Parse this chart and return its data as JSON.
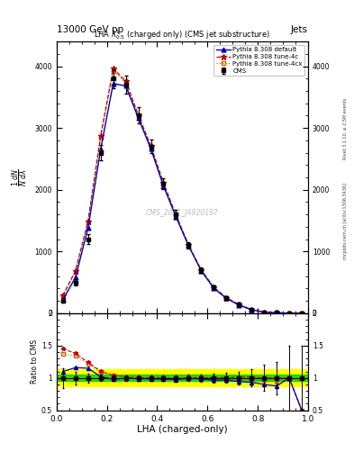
{
  "title": "13000 GeV pp",
  "title_right": "Jets",
  "plot_title": "LHA $\\lambda^1_{0.5}$ (charged only) (CMS jet substructure)",
  "xlabel": "LHA (charged-only)",
  "ylabel_top": "mathrm d $^2$N",
  "ylabel_ratio": "Ratio to CMS",
  "watermark": "CMS_2021_JA920187",
  "rivet_text": "Rivet 3.1.10, ≥ 2.5M events",
  "arxiv_text": "mcplots.cern.ch [arXiv:1306.3436]",
  "x_data": [
    0.025,
    0.075,
    0.125,
    0.175,
    0.225,
    0.275,
    0.325,
    0.375,
    0.425,
    0.475,
    0.525,
    0.575,
    0.625,
    0.675,
    0.725,
    0.775,
    0.825,
    0.875,
    0.925,
    0.975
  ],
  "cms_data": [
    200,
    500,
    1200,
    2600,
    3800,
    3700,
    3200,
    2700,
    2100,
    1600,
    1100,
    700,
    420,
    250,
    140,
    60,
    20,
    8,
    2,
    1
  ],
  "cms_errors": [
    30,
    50,
    80,
    120,
    150,
    150,
    130,
    110,
    90,
    70,
    55,
    40,
    28,
    20,
    14,
    8,
    4,
    2,
    1,
    0.5
  ],
  "pythia_default": [
    220,
    580,
    1380,
    2650,
    3720,
    3680,
    3160,
    2660,
    2060,
    1560,
    1090,
    690,
    405,
    242,
    132,
    56,
    18,
    7,
    2,
    0.5
  ],
  "pythia_4c": [
    290,
    690,
    1490,
    2870,
    3960,
    3760,
    3210,
    2710,
    2110,
    1590,
    1105,
    703,
    422,
    252,
    142,
    61,
    20,
    8,
    2,
    0.5
  ],
  "pythia_4cx": [
    275,
    670,
    1470,
    2840,
    3920,
    3740,
    3190,
    2695,
    2095,
    1575,
    1098,
    698,
    418,
    250,
    140,
    59,
    19.5,
    7.5,
    2,
    0.5
  ],
  "ylim_main": [
    0,
    4400
  ],
  "ylim_ratio": [
    0.5,
    2.0
  ],
  "xlim": [
    0,
    1
  ],
  "yticks_main": [
    0,
    1000,
    2000,
    3000,
    4000
  ],
  "yticks_ratio": [
    0.5,
    1.0,
    1.5,
    2.0
  ],
  "green_band": [
    0.95,
    1.05
  ],
  "yellow_band": [
    0.87,
    1.13
  ],
  "cms_color": "#000000",
  "default_color": "#0000cc",
  "tune4c_color": "#cc0000",
  "tune4cx_color": "#cc6600",
  "bg_color": "#ffffff"
}
